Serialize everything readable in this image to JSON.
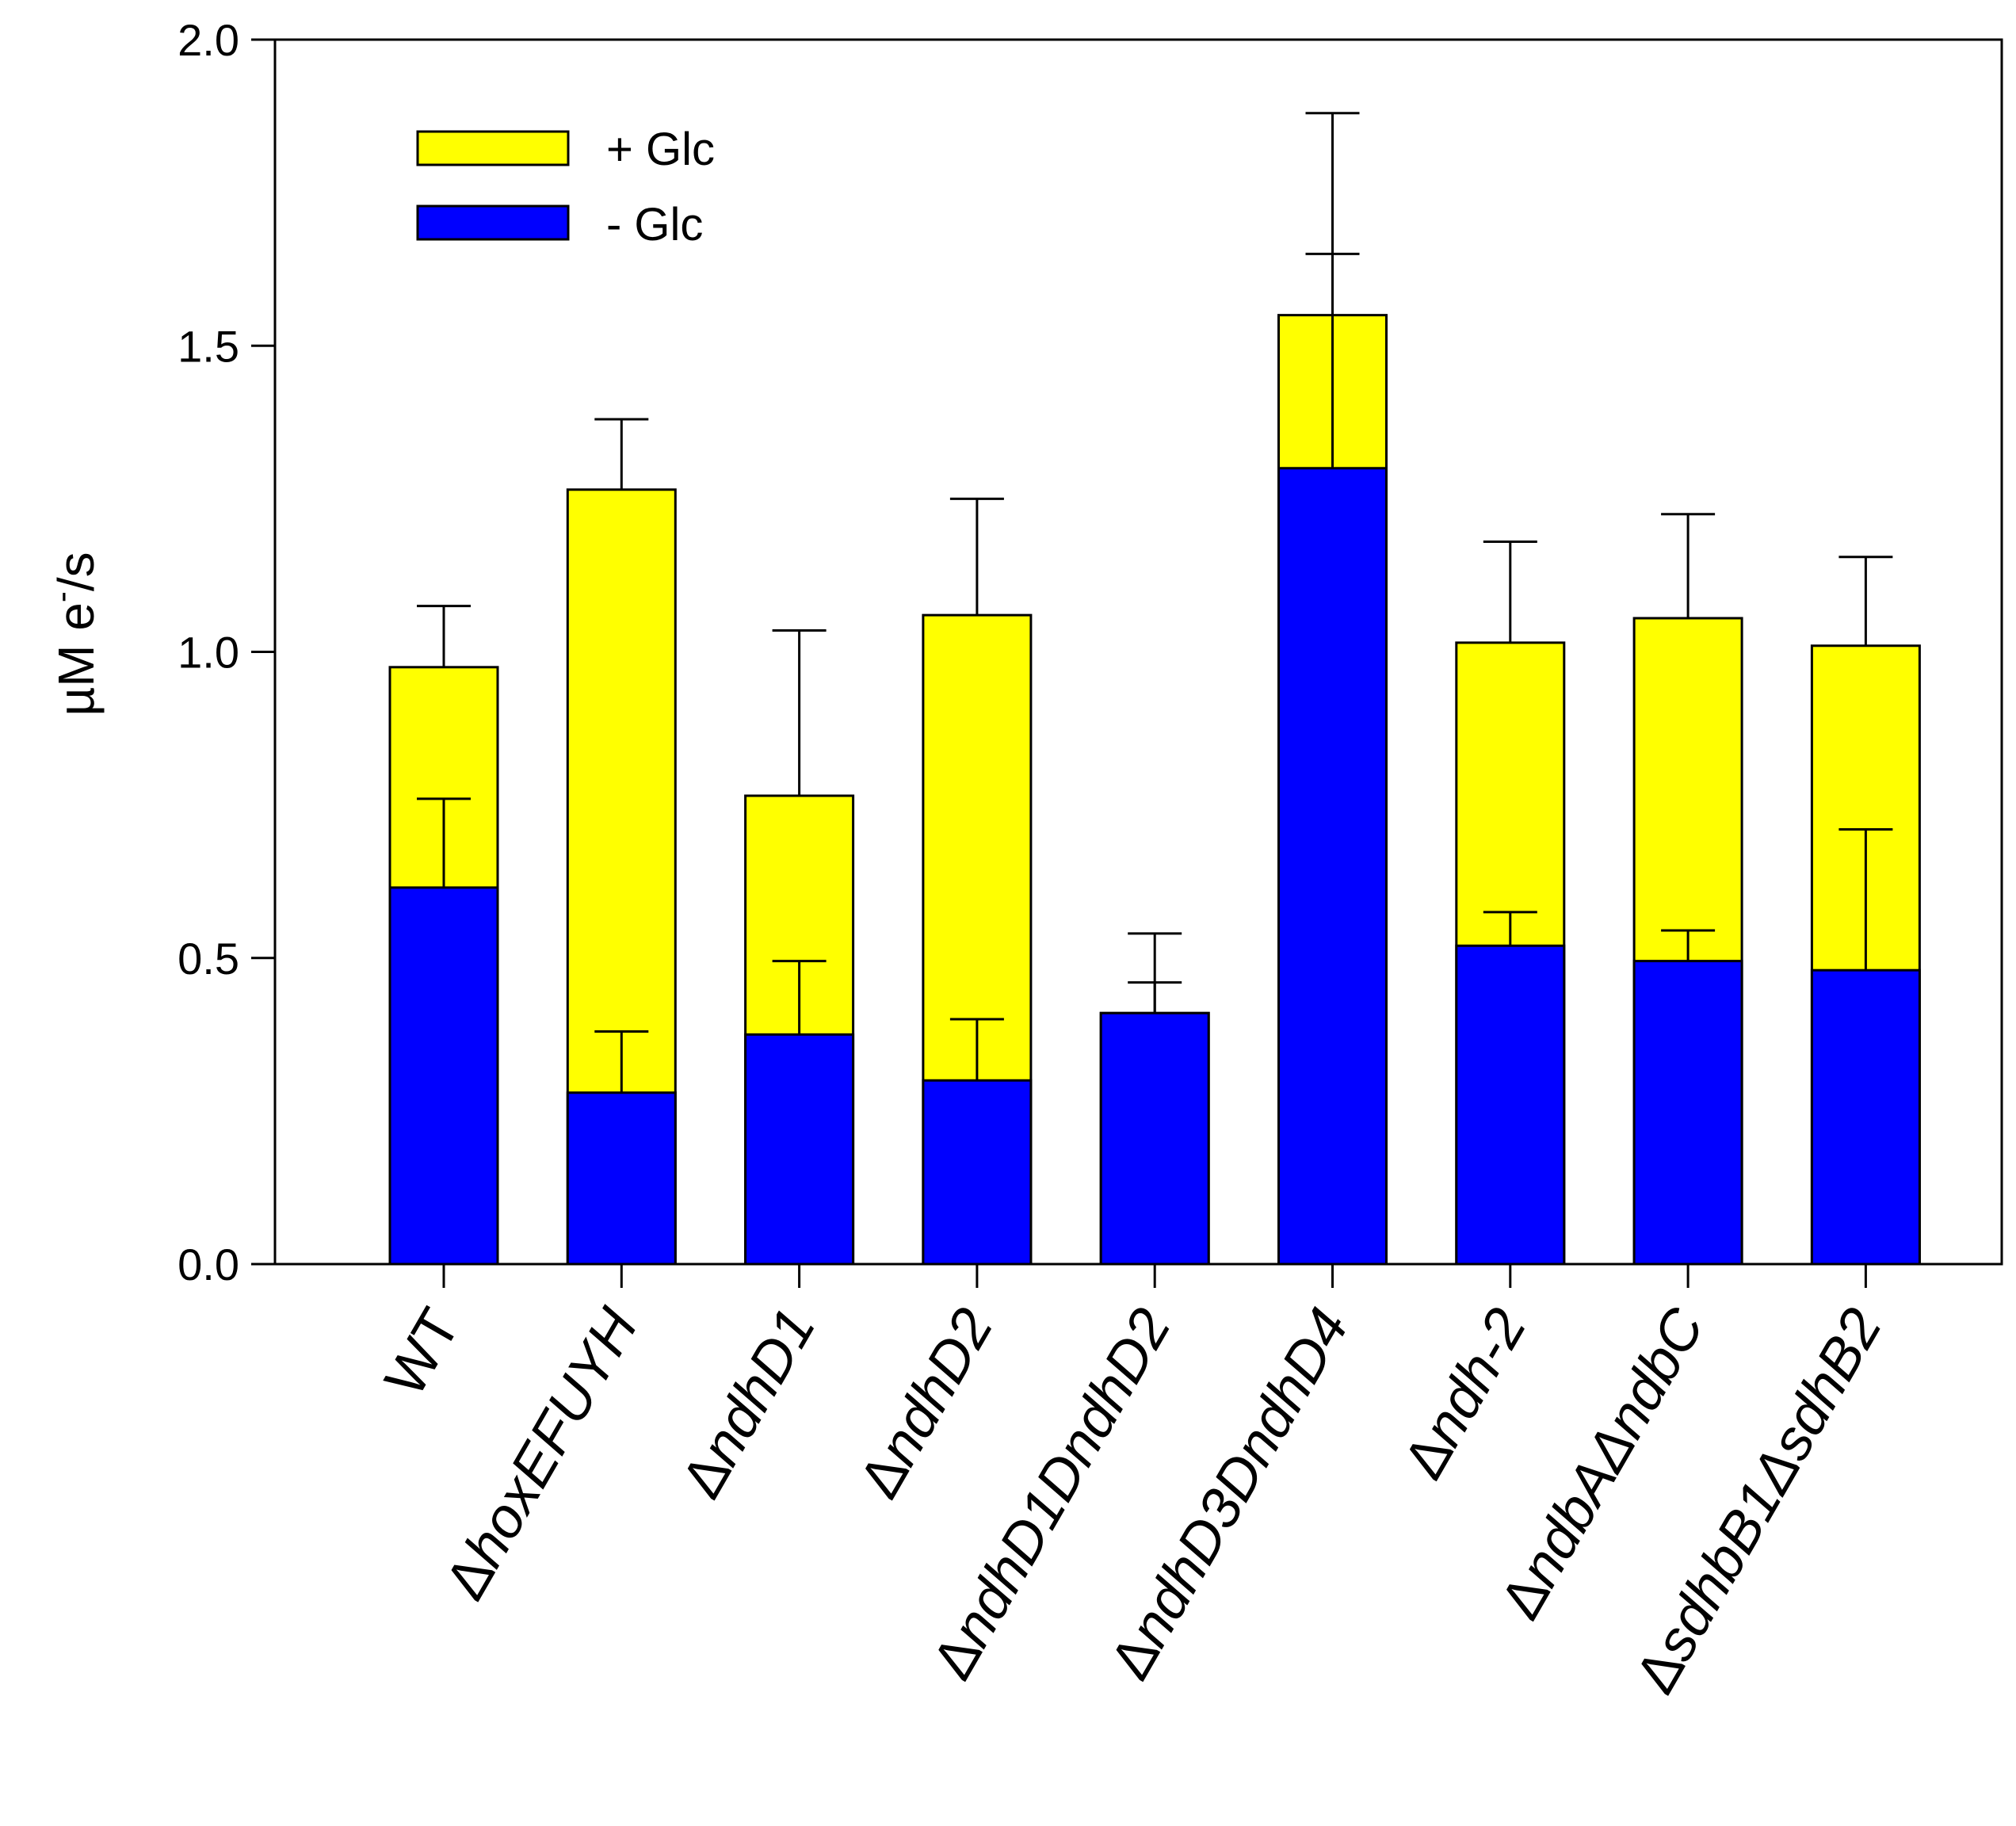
{
  "chart_data": {
    "type": "bar",
    "stacked": false,
    "overlay": true,
    "title": "",
    "xlabel": "",
    "ylabel": "µM e-/s",
    "ylabel_parts": {
      "main": "µM e",
      "superscript": "-",
      "suffix": "/s"
    },
    "ylim": [
      0,
      2.0
    ],
    "yticks": [
      "0.0",
      "0.5",
      "1.0",
      "1.5",
      "2.0"
    ],
    "grid": false,
    "legend_position": "top-left",
    "categories": [
      {
        "delta": "",
        "gene": "WT",
        "plain": ""
      },
      {
        "delta": "Δ",
        "gene": "hoxEFUYH",
        "plain": ""
      },
      {
        "delta": "Δ",
        "gene": "ndhD1",
        "plain": ""
      },
      {
        "delta": "Δ",
        "gene": "ndhD2",
        "plain": ""
      },
      {
        "delta": "Δ",
        "gene": "ndhD1DndhD2",
        "plain": ""
      },
      {
        "delta": "Δ",
        "gene": "ndhD3DndhD4",
        "plain": ""
      },
      {
        "delta": "Δ",
        "gene": "ndh-2",
        "plain": ""
      },
      {
        "delta": "Δ",
        "gene": "ndbAΔndbC",
        "plain": ""
      },
      {
        "delta": "Δ",
        "gene": "sdhbB1ΔsdhB2",
        "plain": ""
      }
    ],
    "category_labels": [
      "WT",
      "ΔhoxEFUYH",
      "ΔndhD1",
      "ΔndhD2",
      "ΔndhD1DndhD2",
      "ΔndhD3DndhD4",
      "Δndh-2",
      "ΔndbAΔndbC",
      "ΔsdhbB1ΔsdhB2"
    ],
    "series": [
      {
        "name": "+ Glc",
        "color": "#ffff00",
        "values": [
          0.975,
          1.265,
          0.765,
          1.06,
          0.41,
          1.55,
          1.015,
          1.055,
          1.01
        ],
        "error": [
          0.1,
          0.115,
          0.27,
          0.19,
          0.13,
          0.33,
          0.165,
          0.17,
          0.145
        ]
      },
      {
        "name": "- Glc",
        "color": "#0000ff",
        "values": [
          0.615,
          0.28,
          0.375,
          0.3,
          0.41,
          1.3,
          0.52,
          0.495,
          0.48
        ],
        "error": [
          0.145,
          0.1,
          0.12,
          0.1,
          0.05,
          0.35,
          0.055,
          0.05,
          0.23
        ]
      }
    ]
  }
}
